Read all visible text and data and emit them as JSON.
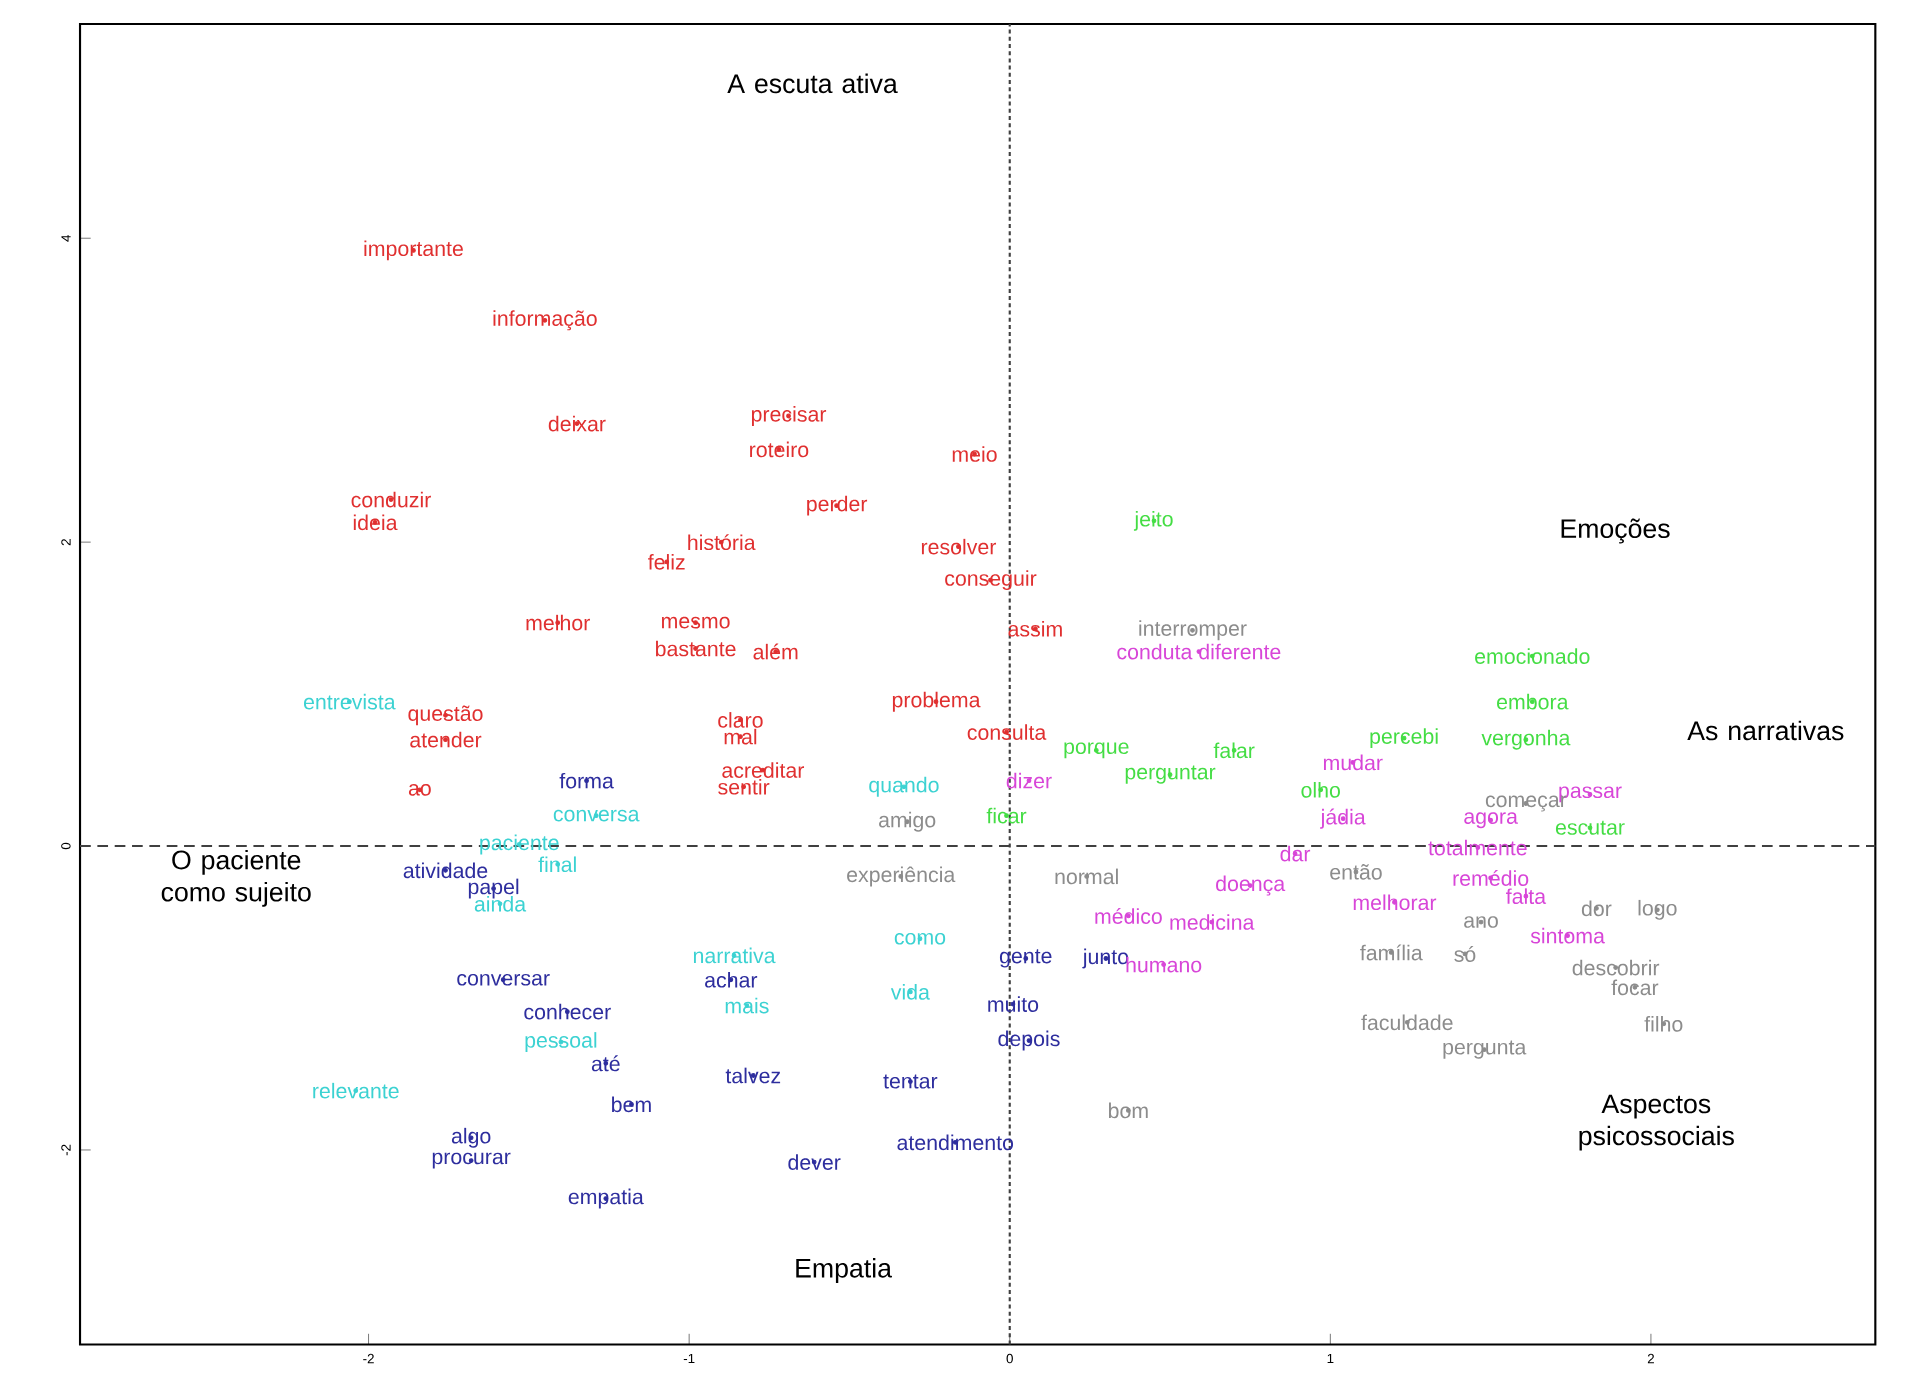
{
  "chart_data": {
    "type": "scatter",
    "marker": "circle",
    "grid": false,
    "xlim": [
      -2.9,
      2.7
    ],
    "ylim": [
      -3.28,
      5.41
    ],
    "xticks": [
      -2,
      -1,
      0,
      1,
      2
    ],
    "yticks": [
      -2,
      0,
      2,
      4
    ],
    "ref_lines": [
      {
        "axis": "x",
        "value": 0,
        "color": "#404040",
        "line_style": "dotted"
      },
      {
        "axis": "y",
        "value": 0,
        "color": "#404040",
        "line_style": "dashed"
      }
    ],
    "series": [
      {
        "color": "#e03030",
        "x": [
          -1.86,
          -1.45,
          -1.35,
          -0.69,
          -0.72,
          -0.11,
          -0.54,
          -1.93,
          -1.98,
          -0.9,
          -1.07,
          -0.16,
          -0.06,
          -1.41,
          -0.98,
          -0.98,
          -0.73,
          -0.23,
          -0.84,
          -0.84,
          -1.76,
          -1.76,
          -1.84,
          -0.77,
          -0.83,
          0.08,
          -0.01
        ],
        "values": [
          3.92,
          3.46,
          2.78,
          2.83,
          2.61,
          2.58,
          2.24,
          2.28,
          2.13,
          2.0,
          1.87,
          1.97,
          1.75,
          1.47,
          1.47,
          1.3,
          1.28,
          0.95,
          0.83,
          0.72,
          0.86,
          0.7,
          0.37,
          0.5,
          0.39,
          1.43,
          0.75
        ],
        "value_labels": [
          "importante",
          "informação",
          "deixar",
          "precisar",
          "roteiro",
          "meio",
          "perder",
          "conduzir",
          "ideia",
          "história",
          "feliz",
          "resolver",
          "conseguir",
          "melhor",
          "mesmo",
          "bastante",
          "além",
          "problema",
          "claro",
          "mal",
          "questão",
          "atender",
          "ao",
          "acreditar",
          "sentir",
          "assim",
          "consulta"
        ]
      },
      {
        "color": "#3cd2d2",
        "x": [
          -2.06,
          -1.29,
          -1.53,
          -1.41,
          -1.59,
          -1.4,
          -2.04,
          -0.28,
          -0.86,
          -0.31,
          -0.82,
          -0.33
        ],
        "values": [
          0.95,
          0.2,
          0.01,
          -0.12,
          -0.38,
          -1.29,
          -1.61,
          -0.61,
          -0.72,
          -0.96,
          -1.05,
          0.39
        ],
        "value_labels": [
          "entrevista",
          "conversa",
          "paciente",
          "final",
          "ainda",
          "pessoal",
          "relevante",
          "como",
          "narrativa",
          "vida",
          "mais",
          "quando"
        ]
      },
      {
        "color": "#2e2e9e",
        "x": [
          -1.32,
          -1.76,
          -1.61,
          -1.58,
          -1.38,
          -0.87,
          -1.26,
          -1.18,
          -0.8,
          -0.31,
          -1.68,
          -1.68,
          -1.26,
          -0.61,
          -0.17,
          0.05,
          0.3,
          0.01,
          0.06
        ],
        "values": [
          0.43,
          -0.16,
          -0.28,
          -0.88,
          -1.09,
          -0.88,
          -1.43,
          -1.7,
          -1.51,
          -1.55,
          -1.92,
          -2.07,
          -2.32,
          -2.08,
          -1.95,
          -0.74,
          -0.74,
          -1.04,
          -1.28
        ],
        "value_labels": [
          "forma",
          "atividade",
          "papel",
          "conversar",
          "conhecer",
          "achar",
          "até",
          "bem",
          "talvez",
          "tentar",
          "algo",
          "procurar",
          "empatia",
          "dever",
          "atendimento",
          "gente",
          "junto",
          "muito",
          "depois"
        ]
      },
      {
        "color": "#44dd44",
        "x": [
          0.45,
          1.63,
          1.63,
          1.61,
          1.23,
          0.7,
          0.5,
          0.97,
          0.27,
          -0.01,
          1.81
        ],
        "values": [
          2.14,
          1.25,
          0.95,
          0.7,
          0.71,
          0.63,
          0.47,
          0.37,
          0.63,
          0.2,
          0.12
        ],
        "value_labels": [
          "jeito",
          "emocionado",
          "embora",
          "vergonha",
          "percebi",
          "falar",
          "perguntar",
          "olho",
          "porque",
          "ficar",
          "escutar"
        ]
      },
      {
        "color": "#d846d8",
        "x": [
          0.59,
          1.07,
          1.81,
          1.5,
          1.04,
          1.46,
          0.89,
          1.5,
          0.75,
          1.61,
          1.2,
          0.37,
          0.63,
          0.48,
          1.74,
          0.06
        ],
        "values": [
          1.28,
          0.55,
          0.34,
          0.17,
          0.18,
          -0.01,
          -0.05,
          -0.21,
          -0.26,
          -0.33,
          -0.37,
          -0.46,
          -0.5,
          -0.78,
          -0.59,
          0.43
        ],
        "value_labels": [
          "conduta diferente",
          "mudar",
          "passar",
          "agora",
          "jádia",
          "totalmente",
          "dar",
          "remédio",
          "doença",
          "falta",
          "melhorar",
          "médico",
          "medicina",
          "humano",
          "sintoma",
          "dizer"
        ]
      },
      {
        "color": "#8c8c8c",
        "x": [
          1.08,
          0.24,
          1.47,
          1.83,
          2.02,
          1.42,
          1.19,
          1.89,
          1.95,
          2.04,
          1.48,
          1.24,
          -0.32,
          -0.34,
          0.37,
          0.57,
          1.61
        ],
        "values": [
          -0.17,
          -0.2,
          -0.5,
          -0.41,
          -0.42,
          -0.71,
          -0.7,
          -0.8,
          -0.93,
          -1.17,
          -1.34,
          -1.16,
          0.16,
          -0.2,
          -1.74,
          1.42,
          0.28
        ],
        "value_labels": [
          "então",
          "normal",
          "ano",
          "dor",
          "logo",
          "só",
          "família",
          "descobrir",
          "focar",
          "filho",
          "pergunta",
          "faculdade",
          "amigo",
          "experiência",
          "bom",
          "interromper",
          "começar"
        ]
      }
    ],
    "annotations": [
      "A escuta ativa",
      "Emoções",
      "As narrativas",
      "O paciente como sujeito",
      "Aspectos psicossociais",
      "Empatia"
    ]
  }
}
